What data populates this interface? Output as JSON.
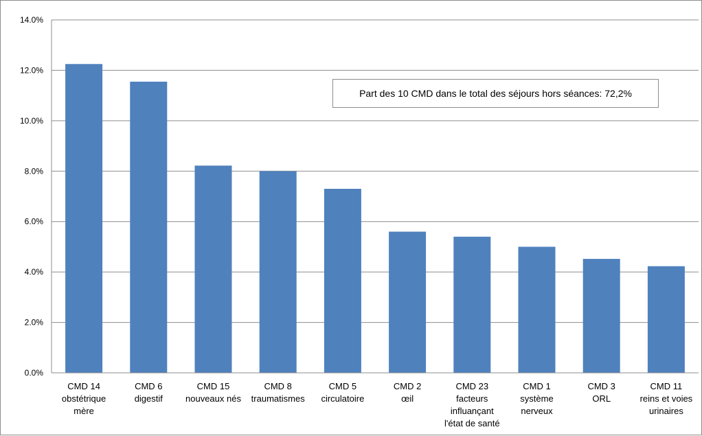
{
  "chart_data": {
    "type": "bar",
    "title": "",
    "xlabel": "",
    "ylabel": "",
    "ylim": [
      0,
      14
    ],
    "y_ticks": [
      "0.0%",
      "2.0%",
      "4.0%",
      "6.0%",
      "8.0%",
      "10.0%",
      "12.0%",
      "14.0%"
    ],
    "grid": true,
    "bar_color": "#4f81bd",
    "categories": [
      [
        "CMD 14",
        "obstétrique",
        "mère"
      ],
      [
        "CMD 6",
        "digestif"
      ],
      [
        "CMD 15",
        "nouveaux nés"
      ],
      [
        "CMD 8",
        "traumatismes"
      ],
      [
        "CMD 5",
        "circulatoire"
      ],
      [
        "CMD 2",
        "œil"
      ],
      [
        "CMD 23",
        "facteurs",
        "influançant",
        "l'état de santé"
      ],
      [
        "CMD 1",
        "système",
        "nerveux"
      ],
      [
        "CMD 3",
        "ORL"
      ],
      [
        "CMD 11",
        "reins et voies",
        "urinaires"
      ]
    ],
    "values": [
      12.25,
      11.55,
      8.22,
      8.0,
      7.3,
      5.6,
      5.4,
      5.0,
      4.52,
      4.23
    ],
    "annotation": "Part des 10 CMD dans le total des séjours  hors séances: 72,2%"
  }
}
